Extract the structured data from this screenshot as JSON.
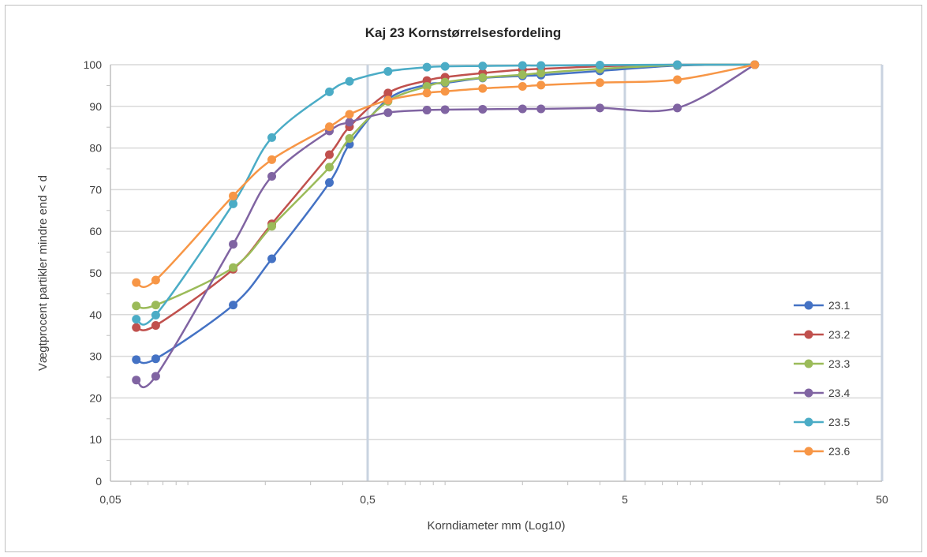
{
  "chart_data": {
    "type": "line",
    "title": "Kaj 23 Kornstørrelsesfordeling",
    "xlabel": "Korndiameter mm (Log10)",
    "ylabel": "Vægtprocent partikler mindre end < d",
    "x_scale": "log",
    "xlim": [
      0.05,
      50
    ],
    "ylim": [
      0,
      100
    ],
    "x_ticks": [
      0.05,
      0.5,
      5,
      50
    ],
    "x_tick_labels": [
      "0,05",
      "0,5",
      "5",
      "50"
    ],
    "y_ticks": [
      0,
      10,
      20,
      30,
      40,
      50,
      60,
      70,
      80,
      90,
      100
    ],
    "y_tick_labels": [
      "0",
      "10",
      "20",
      "30",
      "40",
      "50",
      "60",
      "70",
      "80",
      "90",
      "100"
    ],
    "grid": true,
    "legend_position": "right",
    "series": [
      {
        "name": "23.1",
        "color": "#4472c4",
        "points": [
          [
            0.063,
            29.2
          ],
          [
            0.075,
            29.4
          ],
          [
            0.15,
            42.3
          ],
          [
            0.212,
            53.4
          ],
          [
            0.355,
            71.7
          ],
          [
            0.425,
            80.9
          ],
          [
            0.6,
            91.7
          ],
          [
            0.85,
            95.2
          ],
          [
            1.0,
            95.6
          ],
          [
            1.4,
            96.8
          ],
          [
            2.0,
            97.3
          ],
          [
            2.36,
            97.5
          ],
          [
            4.0,
            98.5
          ],
          [
            8.0,
            99.8
          ],
          [
            16.0,
            100
          ]
        ]
      },
      {
        "name": "23.2",
        "color": "#c0504d",
        "points": [
          [
            0.063,
            36.9
          ],
          [
            0.075,
            37.4
          ],
          [
            0.15,
            50.9
          ],
          [
            0.212,
            61.8
          ],
          [
            0.355,
            78.4
          ],
          [
            0.425,
            85.1
          ],
          [
            0.6,
            93.2
          ],
          [
            0.85,
            96.2
          ],
          [
            1.0,
            97.0
          ],
          [
            1.4,
            98.0
          ],
          [
            2.0,
            98.8
          ],
          [
            2.36,
            99.0
          ],
          [
            4.0,
            99.6
          ],
          [
            8.0,
            100
          ],
          [
            16.0,
            100
          ]
        ]
      },
      {
        "name": "23.3",
        "color": "#9bbb59",
        "points": [
          [
            0.063,
            42.1
          ],
          [
            0.075,
            42.3
          ],
          [
            0.15,
            51.3
          ],
          [
            0.212,
            61.2
          ],
          [
            0.355,
            75.4
          ],
          [
            0.425,
            82.3
          ],
          [
            0.6,
            91.2
          ],
          [
            0.85,
            94.8
          ],
          [
            1.0,
            95.8
          ],
          [
            1.4,
            96.9
          ],
          [
            2.0,
            97.6
          ],
          [
            2.36,
            98.0
          ],
          [
            4.0,
            99.0
          ],
          [
            8.0,
            99.9
          ],
          [
            16.0,
            100
          ]
        ]
      },
      {
        "name": "23.4",
        "color": "#8064a2",
        "points": [
          [
            0.063,
            24.3
          ],
          [
            0.075,
            25.2
          ],
          [
            0.15,
            56.9
          ],
          [
            0.212,
            73.2
          ],
          [
            0.355,
            84.1
          ],
          [
            0.425,
            86.2
          ],
          [
            0.6,
            88.5
          ],
          [
            0.85,
            89.1
          ],
          [
            1.0,
            89.2
          ],
          [
            1.4,
            89.3
          ],
          [
            2.0,
            89.4
          ],
          [
            2.36,
            89.4
          ],
          [
            4.0,
            89.6
          ],
          [
            8.0,
            89.6
          ],
          [
            16.0,
            100
          ]
        ]
      },
      {
        "name": "23.5",
        "color": "#4bacc6",
        "points": [
          [
            0.063,
            38.9
          ],
          [
            0.075,
            39.9
          ],
          [
            0.15,
            66.6
          ],
          [
            0.212,
            82.5
          ],
          [
            0.355,
            93.5
          ],
          [
            0.425,
            96.0
          ],
          [
            0.6,
            98.4
          ],
          [
            0.85,
            99.4
          ],
          [
            1.0,
            99.6
          ],
          [
            1.4,
            99.7
          ],
          [
            2.0,
            99.8
          ],
          [
            2.36,
            99.8
          ],
          [
            4.0,
            99.9
          ],
          [
            8.0,
            100
          ],
          [
            16.0,
            100
          ]
        ]
      },
      {
        "name": "23.6",
        "color": "#f79646",
        "points": [
          [
            0.063,
            47.7
          ],
          [
            0.075,
            48.3
          ],
          [
            0.15,
            68.5
          ],
          [
            0.212,
            77.2
          ],
          [
            0.355,
            85.1
          ],
          [
            0.425,
            88.1
          ],
          [
            0.6,
            91.5
          ],
          [
            0.85,
            93.2
          ],
          [
            1.0,
            93.6
          ],
          [
            1.4,
            94.3
          ],
          [
            2.0,
            94.8
          ],
          [
            2.36,
            95.1
          ],
          [
            4.0,
            95.7
          ],
          [
            8.0,
            96.4
          ],
          [
            16.0,
            100
          ]
        ]
      }
    ]
  }
}
